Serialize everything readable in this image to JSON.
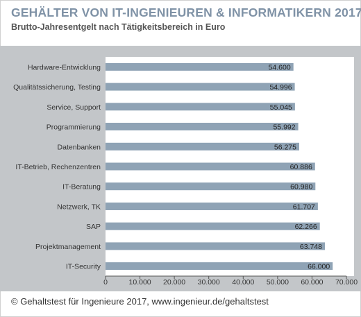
{
  "header": {
    "title": "GEHÄLTER VON IT-INGENIEUREN & INFORMATIKERN 2017",
    "subtitle": "Brutto-Jahresentgelt nach Tätigkeitsbereich in Euro"
  },
  "footer": {
    "credit": "© Gehaltstest für Ingenieure 2017, www.ingenieur.de/gehaltstest"
  },
  "colors": {
    "bar": "#8fa3b5",
    "title": "#7f92a6",
    "panel": "#c3c6c9"
  },
  "chart_data": {
    "type": "bar",
    "orientation": "horizontal",
    "title": "GEHÄLTER VON IT-INGENIEUREN & INFORMATIKERN 2017",
    "subtitle": "Brutto-Jahresentgelt nach Tätigkeitsbereich in Euro",
    "xlabel": "",
    "ylabel": "",
    "categories": [
      "Hardware-Entwicklung",
      "Qualitätssicherung, Testing",
      "Service, Support",
      "Programmierung",
      "Datenbanken",
      "IT-Betrieb, Rechenzentren",
      "IT-Beratung",
      "Netzwerk, TK",
      "SAP",
      "Projektmanagement",
      "IT-Security"
    ],
    "values": [
      54600,
      54996,
      55045,
      55992,
      56275,
      60886,
      60980,
      61707,
      62266,
      63748,
      66000
    ],
    "value_labels": [
      "54.600",
      "54.996",
      "55.045",
      "55.992",
      "56.275",
      "60.886",
      "60.980",
      "61.707",
      "62.266",
      "63.748",
      "66.000"
    ],
    "xlim": [
      0,
      70000
    ],
    "xticks": [
      0,
      10000,
      20000,
      30000,
      40000,
      50000,
      60000,
      70000
    ],
    "xtick_labels": [
      "0",
      "10.000",
      "20.000",
      "30.000",
      "40.000",
      "50.000",
      "60.000",
      "70.000"
    ],
    "grid": false,
    "legend": "none"
  }
}
